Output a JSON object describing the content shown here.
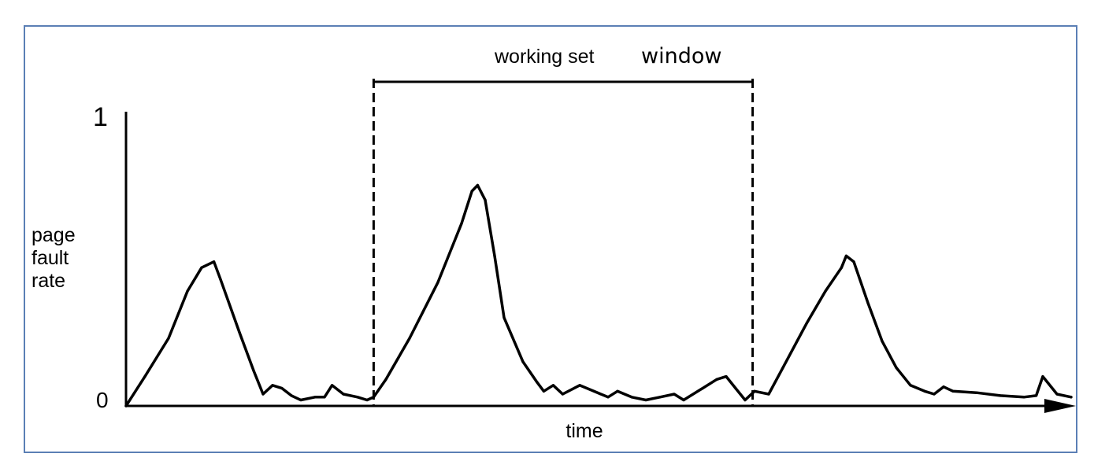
{
  "chart_data": {
    "type": "line",
    "title": "",
    "xlabel": "time",
    "ylabel_lines": [
      "page",
      "fault",
      "rate"
    ],
    "y_ticks": [
      "1",
      "0"
    ],
    "ylim": [
      0,
      1
    ],
    "xlim": [
      0,
      1
    ],
    "annotation": {
      "text_part1": "working set",
      "text_part2": "window",
      "x_start": 0.262,
      "x_end": 0.663
    },
    "series": [
      {
        "points": [
          [
            0.0,
            0.0
          ],
          [
            0.02,
            0.1
          ],
          [
            0.045,
            0.23
          ],
          [
            0.065,
            0.39
          ],
          [
            0.08,
            0.47
          ],
          [
            0.093,
            0.49
          ],
          [
            0.1,
            0.43
          ],
          [
            0.12,
            0.25
          ],
          [
            0.135,
            0.12
          ],
          [
            0.145,
            0.04
          ],
          [
            0.155,
            0.07
          ],
          [
            0.165,
            0.06
          ],
          [
            0.175,
            0.035
          ],
          [
            0.185,
            0.02
          ],
          [
            0.2,
            0.03
          ],
          [
            0.21,
            0.03
          ],
          [
            0.218,
            0.07
          ],
          [
            0.23,
            0.04
          ],
          [
            0.245,
            0.03
          ],
          [
            0.255,
            0.02
          ],
          [
            0.262,
            0.03
          ],
          [
            0.275,
            0.09
          ],
          [
            0.3,
            0.23
          ],
          [
            0.33,
            0.42
          ],
          [
            0.355,
            0.62
          ],
          [
            0.366,
            0.73
          ],
          [
            0.372,
            0.75
          ],
          [
            0.38,
            0.7
          ],
          [
            0.39,
            0.51
          ],
          [
            0.4,
            0.3
          ],
          [
            0.42,
            0.15
          ],
          [
            0.435,
            0.08
          ],
          [
            0.442,
            0.05
          ],
          [
            0.452,
            0.07
          ],
          [
            0.462,
            0.04
          ],
          [
            0.48,
            0.07
          ],
          [
            0.495,
            0.05
          ],
          [
            0.51,
            0.03
          ],
          [
            0.52,
            0.05
          ],
          [
            0.535,
            0.03
          ],
          [
            0.55,
            0.02
          ],
          [
            0.565,
            0.03
          ],
          [
            0.58,
            0.04
          ],
          [
            0.59,
            0.02
          ],
          [
            0.61,
            0.06
          ],
          [
            0.625,
            0.09
          ],
          [
            0.635,
            0.1
          ],
          [
            0.645,
            0.06
          ],
          [
            0.655,
            0.02
          ],
          [
            0.665,
            0.05
          ],
          [
            0.68,
            0.04
          ],
          [
            0.695,
            0.13
          ],
          [
            0.72,
            0.28
          ],
          [
            0.74,
            0.39
          ],
          [
            0.757,
            0.47
          ],
          [
            0.762,
            0.51
          ],
          [
            0.77,
            0.49
          ],
          [
            0.785,
            0.35
          ],
          [
            0.8,
            0.22
          ],
          [
            0.815,
            0.13
          ],
          [
            0.83,
            0.07
          ],
          [
            0.845,
            0.05
          ],
          [
            0.855,
            0.04
          ],
          [
            0.865,
            0.065
          ],
          [
            0.875,
            0.05
          ],
          [
            0.9,
            0.045
          ],
          [
            0.925,
            0.035
          ],
          [
            0.95,
            0.03
          ],
          [
            0.963,
            0.035
          ],
          [
            0.97,
            0.1
          ],
          [
            0.985,
            0.04
          ],
          [
            1.0,
            0.03
          ]
        ]
      }
    ]
  }
}
